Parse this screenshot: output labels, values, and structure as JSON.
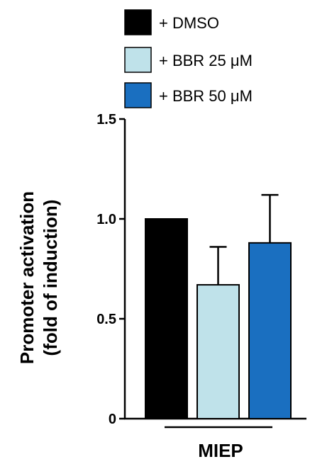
{
  "chart_data": {
    "type": "bar",
    "categories": [
      "MIEP"
    ],
    "series": [
      {
        "name": "+ DMSO",
        "values": [
          1.0
        ],
        "errors": [
          0.0
        ],
        "color": "#000000"
      },
      {
        "name": "+ BBR 25 μM",
        "values": [
          0.67
        ],
        "errors": [
          0.19
        ],
        "color": "#bfe2ea"
      },
      {
        "name": "+ BBR 50 μM",
        "values": [
          0.88
        ],
        "errors": [
          0.24
        ],
        "color": "#1a6fc0"
      }
    ],
    "ylabel_line1": "Promoter activation",
    "ylabel_line2": "(fold of induction)",
    "ylim": [
      0,
      1.5
    ],
    "yticks": [
      0,
      0.5,
      1.0,
      1.5
    ],
    "ytick_labels": [
      "0",
      "0.5",
      "1.0",
      "1.5"
    ],
    "legend_position": "top",
    "grid": false
  }
}
